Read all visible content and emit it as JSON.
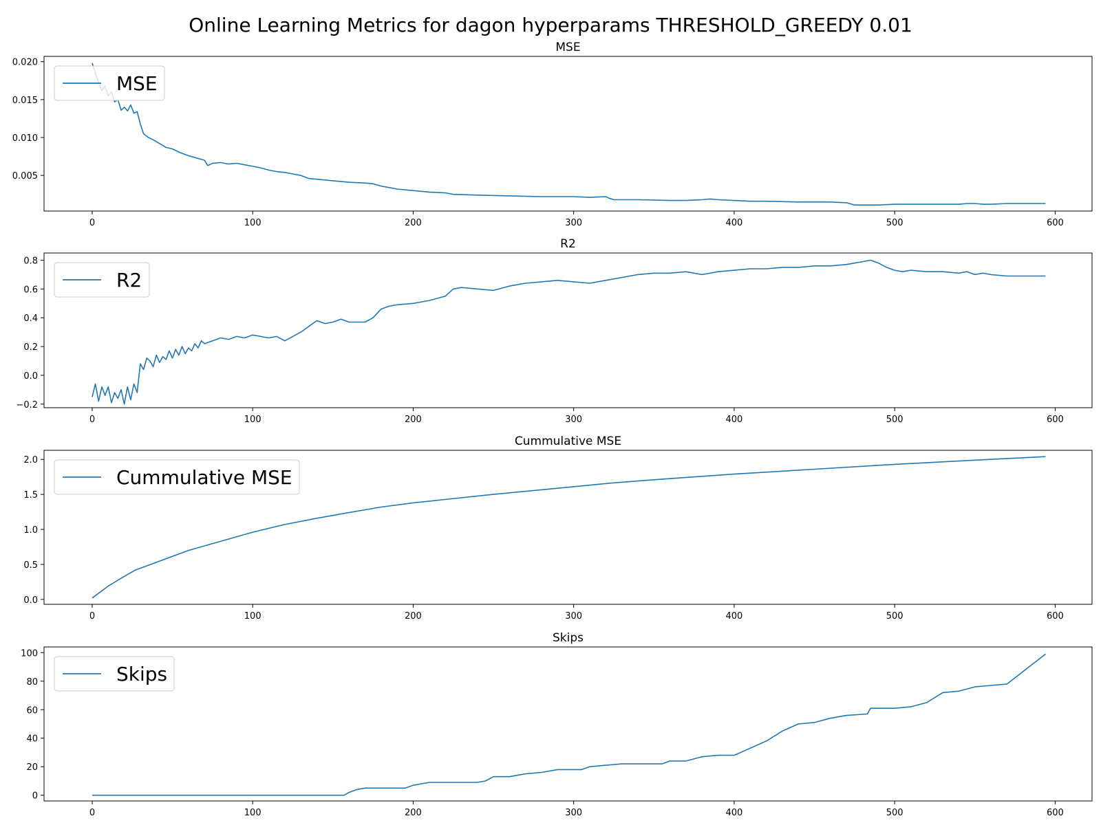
{
  "suptitle": "Online Learning Metrics for dagon hyperparams THRESHOLD_GREEDY 0.01",
  "colors": {
    "line": "#1f77b4",
    "axis": "#000000",
    "legend_border": "#cccccc",
    "background": "#ffffff"
  },
  "chart_data": [
    {
      "type": "line",
      "title": "MSE",
      "xlabel": "",
      "ylabel": "",
      "xlim": [
        -30,
        623
      ],
      "ylim": [
        0.0003,
        0.0207
      ],
      "xticks": [
        0,
        100,
        200,
        300,
        400,
        500,
        600
      ],
      "xtick_labels": [
        "0",
        "100",
        "200",
        "300",
        "400",
        "500",
        "600"
      ],
      "yticks": [
        0.005,
        0.01,
        0.015,
        0.02
      ],
      "ytick_labels": [
        "0.005",
        "0.010",
        "0.015",
        "0.020"
      ],
      "grid": false,
      "legend_position": "upper-left",
      "series": [
        {
          "name": "MSE",
          "x": [
            0,
            2,
            4,
            6,
            8,
            10,
            12,
            14,
            16,
            18,
            20,
            22,
            24,
            26,
            28,
            30,
            32,
            35,
            38,
            42,
            46,
            50,
            55,
            60,
            65,
            70,
            72,
            75,
            80,
            85,
            90,
            95,
            100,
            105,
            110,
            115,
            120,
            125,
            130,
            135,
            140,
            145,
            150,
            160,
            170,
            175,
            180,
            185,
            190,
            200,
            210,
            220,
            225,
            240,
            260,
            280,
            300,
            310,
            320,
            322,
            325,
            340,
            360,
            370,
            380,
            385,
            390,
            400,
            410,
            420,
            440,
            460,
            470,
            475,
            480,
            490,
            500,
            520,
            540,
            545,
            550,
            555,
            560,
            570,
            580,
            594
          ],
          "y": [
            0.0198,
            0.0185,
            0.0172,
            0.0162,
            0.0168,
            0.0155,
            0.016,
            0.0147,
            0.015,
            0.0136,
            0.014,
            0.0135,
            0.0143,
            0.0132,
            0.0134,
            0.0118,
            0.0105,
            0.01,
            0.0097,
            0.0092,
            0.0087,
            0.0085,
            0.008,
            0.0076,
            0.0073,
            0.007,
            0.0063,
            0.0066,
            0.0067,
            0.0065,
            0.0066,
            0.0064,
            0.0062,
            0.006,
            0.0057,
            0.0055,
            0.0054,
            0.0052,
            0.005,
            0.0046,
            0.0045,
            0.0044,
            0.0043,
            0.0041,
            0.004,
            0.0039,
            0.0036,
            0.0034,
            0.0032,
            0.003,
            0.0028,
            0.0027,
            0.0025,
            0.0024,
            0.0023,
            0.0022,
            0.0022,
            0.0021,
            0.0022,
            0.002,
            0.0018,
            0.0018,
            0.0017,
            0.0017,
            0.0018,
            0.0019,
            0.0018,
            0.0017,
            0.0016,
            0.0016,
            0.0015,
            0.0015,
            0.0014,
            0.0011,
            0.0011,
            0.0011,
            0.0012,
            0.0012,
            0.0012,
            0.0013,
            0.0013,
            0.0012,
            0.0012,
            0.0013,
            0.0013,
            0.0013
          ]
        }
      ]
    },
    {
      "type": "line",
      "title": "R2",
      "xlabel": "",
      "ylabel": "",
      "xlim": [
        -30,
        623
      ],
      "ylim": [
        -0.225,
        0.85
      ],
      "xticks": [
        0,
        100,
        200,
        300,
        400,
        500,
        600
      ],
      "xtick_labels": [
        "0",
        "100",
        "200",
        "300",
        "400",
        "500",
        "600"
      ],
      "yticks": [
        -0.2,
        0.0,
        0.2,
        0.4,
        0.6,
        0.8
      ],
      "ytick_labels": [
        "−0.2",
        "0.0",
        "0.2",
        "0.4",
        "0.6",
        "0.8"
      ],
      "grid": false,
      "legend_position": "upper-left",
      "series": [
        {
          "name": "R2",
          "x": [
            0,
            2,
            4,
            6,
            8,
            10,
            12,
            14,
            16,
            18,
            20,
            22,
            24,
            26,
            28,
            30,
            32,
            34,
            36,
            38,
            40,
            42,
            44,
            46,
            48,
            50,
            52,
            54,
            56,
            58,
            60,
            62,
            64,
            66,
            68,
            70,
            75,
            80,
            85,
            90,
            95,
            100,
            105,
            110,
            115,
            120,
            125,
            130,
            135,
            140,
            145,
            150,
            155,
            160,
            170,
            175,
            180,
            185,
            190,
            200,
            210,
            220,
            225,
            230,
            240,
            250,
            260,
            270,
            280,
            290,
            300,
            310,
            320,
            330,
            340,
            350,
            360,
            370,
            380,
            390,
            400,
            410,
            420,
            430,
            440,
            450,
            460,
            470,
            475,
            480,
            485,
            490,
            495,
            500,
            505,
            510,
            520,
            530,
            540,
            545,
            550,
            555,
            560,
            570,
            580,
            594
          ],
          "y": [
            -0.15,
            -0.06,
            -0.18,
            -0.08,
            -0.14,
            -0.08,
            -0.19,
            -0.12,
            -0.16,
            -0.1,
            -0.2,
            -0.08,
            -0.17,
            -0.06,
            -0.12,
            0.08,
            0.04,
            0.12,
            0.1,
            0.06,
            0.14,
            0.09,
            0.13,
            0.11,
            0.17,
            0.12,
            0.18,
            0.14,
            0.2,
            0.15,
            0.19,
            0.17,
            0.22,
            0.19,
            0.24,
            0.22,
            0.24,
            0.26,
            0.25,
            0.27,
            0.26,
            0.28,
            0.27,
            0.26,
            0.27,
            0.24,
            0.27,
            0.3,
            0.34,
            0.38,
            0.36,
            0.37,
            0.39,
            0.37,
            0.37,
            0.4,
            0.46,
            0.48,
            0.49,
            0.5,
            0.52,
            0.55,
            0.6,
            0.61,
            0.6,
            0.59,
            0.62,
            0.64,
            0.65,
            0.66,
            0.65,
            0.64,
            0.66,
            0.68,
            0.7,
            0.71,
            0.71,
            0.72,
            0.7,
            0.72,
            0.73,
            0.74,
            0.74,
            0.75,
            0.75,
            0.76,
            0.76,
            0.77,
            0.78,
            0.79,
            0.8,
            0.78,
            0.75,
            0.73,
            0.72,
            0.73,
            0.72,
            0.72,
            0.71,
            0.72,
            0.7,
            0.71,
            0.7,
            0.69,
            0.69,
            0.69
          ]
        }
      ]
    },
    {
      "type": "line",
      "title": "Cummulative MSE",
      "xlabel": "",
      "ylabel": "",
      "xlim": [
        -30,
        623
      ],
      "ylim": [
        -0.07,
        2.13
      ],
      "xticks": [
        0,
        100,
        200,
        300,
        400,
        500,
        600
      ],
      "xtick_labels": [
        "0",
        "100",
        "200",
        "300",
        "400",
        "500",
        "600"
      ],
      "yticks": [
        0.0,
        0.5,
        1.0,
        1.5,
        2.0
      ],
      "ytick_labels": [
        "0.0",
        "0.5",
        "1.0",
        "1.5",
        "2.0"
      ],
      "grid": false,
      "legend_position": "upper-left",
      "series": [
        {
          "name": "Cummulative MSE",
          "x": [
            0,
            10,
            20,
            27,
            40,
            60,
            80,
            100,
            120,
            140,
            160,
            180,
            200,
            250,
            300,
            322,
            350,
            400,
            450,
            500,
            550,
            594
          ],
          "y": [
            0.02,
            0.19,
            0.33,
            0.42,
            0.53,
            0.7,
            0.83,
            0.96,
            1.07,
            1.16,
            1.24,
            1.32,
            1.38,
            1.5,
            1.61,
            1.66,
            1.71,
            1.79,
            1.86,
            1.93,
            1.99,
            2.04
          ]
        }
      ]
    },
    {
      "type": "line",
      "title": "Skips",
      "xlabel": "",
      "ylabel": "",
      "xlim": [
        -30,
        623
      ],
      "ylim": [
        -4,
        104
      ],
      "xticks": [
        0,
        100,
        200,
        300,
        400,
        500,
        600
      ],
      "xtick_labels": [
        "0",
        "100",
        "200",
        "300",
        "400",
        "500",
        "600"
      ],
      "yticks": [
        0,
        20,
        40,
        60,
        80,
        100
      ],
      "ytick_labels": [
        "0",
        "20",
        "40",
        "60",
        "80",
        "100"
      ],
      "grid": false,
      "legend_position": "upper-left",
      "series": [
        {
          "name": "Skips",
          "x": [
            0,
            157,
            160,
            165,
            170,
            195,
            200,
            205,
            210,
            240,
            245,
            250,
            260,
            270,
            280,
            290,
            305,
            310,
            320,
            330,
            355,
            360,
            370,
            380,
            390,
            400,
            410,
            420,
            430,
            440,
            450,
            460,
            470,
            483,
            485,
            500,
            510,
            520,
            530,
            540,
            550,
            560,
            570,
            594
          ],
          "y": [
            0,
            0,
            2,
            4,
            5,
            5,
            7,
            8,
            9,
            9,
            10,
            13,
            13,
            15,
            16,
            18,
            18,
            20,
            21,
            22,
            22,
            24,
            24,
            27,
            28,
            28,
            33,
            38,
            45,
            50,
            51,
            54,
            56,
            57,
            61,
            61,
            62,
            65,
            72,
            73,
            76,
            77,
            78,
            99
          ]
        }
      ]
    }
  ]
}
